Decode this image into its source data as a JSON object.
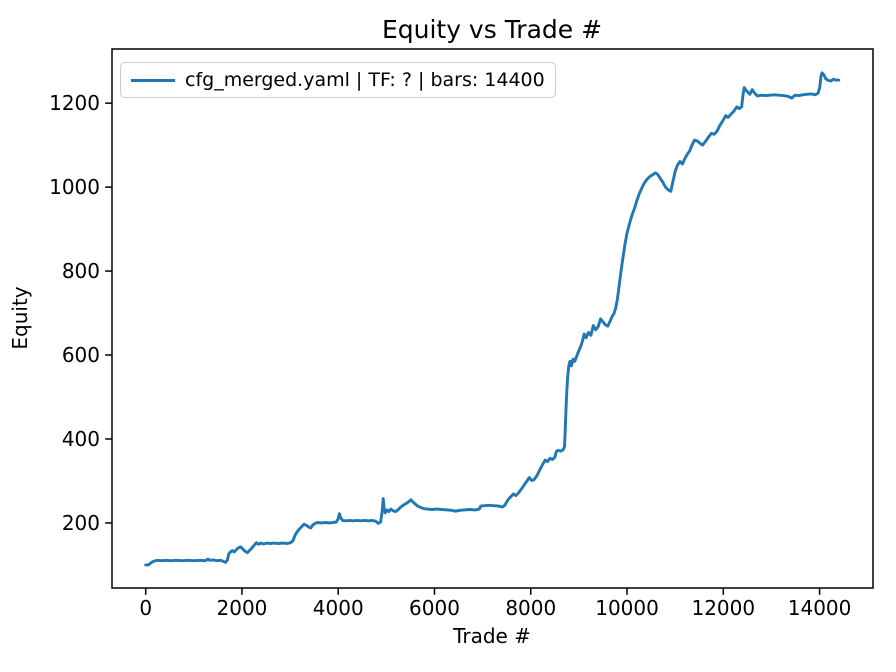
{
  "chart_data": {
    "type": "line",
    "title": "Equity vs Trade #",
    "xlabel": "Trade #",
    "ylabel": "Equity",
    "legend": [
      "cfg_merged.yaml | TF: ? | bars: 14400"
    ],
    "legend_position": "upper left",
    "line_color": "#1f77b4",
    "grid": false,
    "xlim": [
      -700,
      15110
    ],
    "ylim": [
      45,
      1329
    ],
    "xticks": [
      0,
      2000,
      4000,
      6000,
      8000,
      10000,
      12000,
      14000
    ],
    "yticks": [
      200,
      400,
      600,
      800,
      1000,
      1200
    ],
    "series": [
      {
        "name": "cfg_merged.yaml | TF: ? | bars: 14400",
        "points": [
          [
            0,
            100
          ],
          [
            60,
            100
          ],
          [
            100,
            104
          ],
          [
            150,
            108
          ],
          [
            230,
            111
          ],
          [
            320,
            110
          ],
          [
            420,
            111
          ],
          [
            520,
            110
          ],
          [
            640,
            111
          ],
          [
            760,
            110
          ],
          [
            880,
            111
          ],
          [
            1000,
            110
          ],
          [
            1120,
            111
          ],
          [
            1240,
            110
          ],
          [
            1290,
            114
          ],
          [
            1330,
            111
          ],
          [
            1400,
            112
          ],
          [
            1480,
            110
          ],
          [
            1560,
            111
          ],
          [
            1620,
            108
          ],
          [
            1660,
            106
          ],
          [
            1700,
            112
          ],
          [
            1725,
            126
          ],
          [
            1760,
            131
          ],
          [
            1800,
            134
          ],
          [
            1840,
            131
          ],
          [
            1880,
            136
          ],
          [
            1930,
            141
          ],
          [
            1970,
            143
          ],
          [
            2010,
            139
          ],
          [
            2060,
            133
          ],
          [
            2110,
            129
          ],
          [
            2160,
            135
          ],
          [
            2210,
            141
          ],
          [
            2255,
            147
          ],
          [
            2300,
            153
          ],
          [
            2340,
            149
          ],
          [
            2390,
            152
          ],
          [
            2450,
            150
          ],
          [
            2520,
            152
          ],
          [
            2590,
            151
          ],
          [
            2670,
            152
          ],
          [
            2760,
            151
          ],
          [
            2850,
            152
          ],
          [
            2940,
            151
          ],
          [
            3010,
            153
          ],
          [
            3060,
            158
          ],
          [
            3100,
            170
          ],
          [
            3140,
            178
          ],
          [
            3180,
            184
          ],
          [
            3230,
            190
          ],
          [
            3290,
            197
          ],
          [
            3340,
            194
          ],
          [
            3390,
            190
          ],
          [
            3430,
            188
          ],
          [
            3470,
            195
          ],
          [
            3520,
            199
          ],
          [
            3570,
            201
          ],
          [
            3650,
            200
          ],
          [
            3730,
            201
          ],
          [
            3810,
            200
          ],
          [
            3890,
            201
          ],
          [
            3960,
            202
          ],
          [
            4000,
            210
          ],
          [
            4025,
            222
          ],
          [
            4050,
            213
          ],
          [
            4090,
            206
          ],
          [
            4150,
            205
          ],
          [
            4230,
            206
          ],
          [
            4310,
            205
          ],
          [
            4390,
            206
          ],
          [
            4470,
            205
          ],
          [
            4550,
            206
          ],
          [
            4630,
            205
          ],
          [
            4710,
            206
          ],
          [
            4780,
            204
          ],
          [
            4830,
            199
          ],
          [
            4880,
            202
          ],
          [
            4915,
            230
          ],
          [
            4935,
            258
          ],
          [
            4955,
            232
          ],
          [
            4975,
            224
          ],
          [
            5010,
            231
          ],
          [
            5050,
            227
          ],
          [
            5090,
            233
          ],
          [
            5140,
            229
          ],
          [
            5190,
            227
          ],
          [
            5240,
            231
          ],
          [
            5300,
            238
          ],
          [
            5360,
            243
          ],
          [
            5420,
            247
          ],
          [
            5470,
            251
          ],
          [
            5510,
            255
          ],
          [
            5550,
            250
          ],
          [
            5600,
            245
          ],
          [
            5650,
            240
          ],
          [
            5710,
            237
          ],
          [
            5780,
            234
          ],
          [
            5860,
            233
          ],
          [
            5950,
            232
          ],
          [
            6050,
            233
          ],
          [
            6150,
            232
          ],
          [
            6260,
            231
          ],
          [
            6360,
            230
          ],
          [
            6440,
            228
          ],
          [
            6520,
            230
          ],
          [
            6620,
            231
          ],
          [
            6730,
            232
          ],
          [
            6840,
            231
          ],
          [
            6930,
            233
          ],
          [
            6960,
            240
          ],
          [
            7040,
            241
          ],
          [
            7130,
            242
          ],
          [
            7230,
            241
          ],
          [
            7330,
            240
          ],
          [
            7410,
            238
          ],
          [
            7460,
            242
          ],
          [
            7500,
            250
          ],
          [
            7540,
            257
          ],
          [
            7590,
            263
          ],
          [
            7640,
            269
          ],
          [
            7690,
            265
          ],
          [
            7740,
            271
          ],
          [
            7800,
            280
          ],
          [
            7860,
            290
          ],
          [
            7920,
            300
          ],
          [
            7970,
            308
          ],
          [
            8020,
            301
          ],
          [
            8070,
            303
          ],
          [
            8130,
            313
          ],
          [
            8190,
            327
          ],
          [
            8250,
            340
          ],
          [
            8300,
            350
          ],
          [
            8350,
            346
          ],
          [
            8400,
            354
          ],
          [
            8450,
            351
          ],
          [
            8500,
            356
          ],
          [
            8530,
            370
          ],
          [
            8570,
            373
          ],
          [
            8620,
            371
          ],
          [
            8670,
            374
          ],
          [
            8700,
            381
          ],
          [
            8715,
            420
          ],
          [
            8730,
            465
          ],
          [
            8745,
            505
          ],
          [
            8765,
            545
          ],
          [
            8790,
            575
          ],
          [
            8815,
            585
          ],
          [
            8845,
            574
          ],
          [
            8880,
            590
          ],
          [
            8915,
            585
          ],
          [
            8950,
            596
          ],
          [
            8990,
            608
          ],
          [
            9030,
            618
          ],
          [
            9070,
            632
          ],
          [
            9110,
            650
          ],
          [
            9150,
            641
          ],
          [
            9200,
            654
          ],
          [
            9250,
            647
          ],
          [
            9300,
            670
          ],
          [
            9350,
            660
          ],
          [
            9400,
            668
          ],
          [
            9450,
            686
          ],
          [
            9500,
            679
          ],
          [
            9550,
            672
          ],
          [
            9600,
            669
          ],
          [
            9650,
            681
          ],
          [
            9690,
            692
          ],
          [
            9730,
            699
          ],
          [
            9765,
            712
          ],
          [
            9800,
            733
          ],
          [
            9840,
            768
          ],
          [
            9880,
            805
          ],
          [
            9920,
            836
          ],
          [
            9960,
            866
          ],
          [
            10000,
            890
          ],
          [
            10050,
            912
          ],
          [
            10100,
            932
          ],
          [
            10150,
            948
          ],
          [
            10200,
            967
          ],
          [
            10250,
            983
          ],
          [
            10300,
            996
          ],
          [
            10350,
            1008
          ],
          [
            10410,
            1018
          ],
          [
            10470,
            1025
          ],
          [
            10530,
            1029
          ],
          [
            10590,
            1034
          ],
          [
            10640,
            1030
          ],
          [
            10690,
            1021
          ],
          [
            10740,
            1012
          ],
          [
            10800,
            1000
          ],
          [
            10860,
            993
          ],
          [
            10910,
            990
          ],
          [
            10950,
            1012
          ],
          [
            11000,
            1038
          ],
          [
            11050,
            1053
          ],
          [
            11100,
            1061
          ],
          [
            11150,
            1055
          ],
          [
            11200,
            1068
          ],
          [
            11250,
            1078
          ],
          [
            11300,
            1086
          ],
          [
            11350,
            1100
          ],
          [
            11400,
            1112
          ],
          [
            11460,
            1110
          ],
          [
            11520,
            1104
          ],
          [
            11570,
            1100
          ],
          [
            11630,
            1109
          ],
          [
            11690,
            1119
          ],
          [
            11750,
            1128
          ],
          [
            11810,
            1126
          ],
          [
            11870,
            1133
          ],
          [
            11930,
            1147
          ],
          [
            11990,
            1158
          ],
          [
            12050,
            1170
          ],
          [
            12100,
            1166
          ],
          [
            12160,
            1174
          ],
          [
            12220,
            1181
          ],
          [
            12280,
            1191
          ],
          [
            12330,
            1187
          ],
          [
            12380,
            1191
          ],
          [
            12410,
            1220
          ],
          [
            12435,
            1237
          ],
          [
            12470,
            1231
          ],
          [
            12510,
            1226
          ],
          [
            12550,
            1221
          ],
          [
            12600,
            1232
          ],
          [
            12650,
            1224
          ],
          [
            12710,
            1217
          ],
          [
            12790,
            1219
          ],
          [
            12880,
            1218
          ],
          [
            12970,
            1219
          ],
          [
            13060,
            1220
          ],
          [
            13150,
            1219
          ],
          [
            13250,
            1218
          ],
          [
            13350,
            1216
          ],
          [
            13420,
            1212
          ],
          [
            13490,
            1219
          ],
          [
            13570,
            1218
          ],
          [
            13650,
            1220
          ],
          [
            13740,
            1221
          ],
          [
            13830,
            1222
          ],
          [
            13910,
            1220
          ],
          [
            13970,
            1224
          ],
          [
            14005,
            1238
          ],
          [
            14030,
            1265
          ],
          [
            14050,
            1272
          ],
          [
            14090,
            1267
          ],
          [
            14130,
            1258
          ],
          [
            14180,
            1254
          ],
          [
            14240,
            1253
          ],
          [
            14290,
            1257
          ],
          [
            14340,
            1255
          ],
          [
            14400,
            1255
          ]
        ]
      }
    ]
  }
}
